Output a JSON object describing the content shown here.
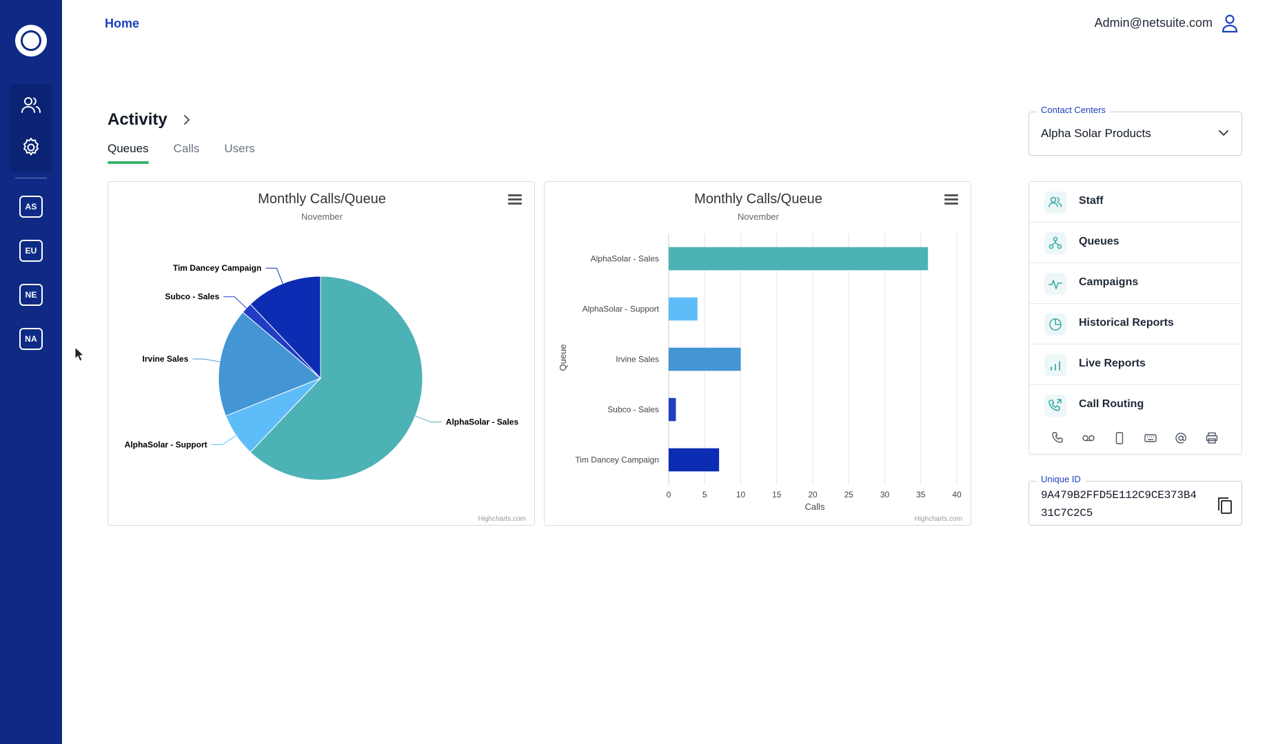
{
  "header": {
    "home_label": "Home",
    "user_email": "Admin@netsuite.com"
  },
  "sidebar": {
    "nav": [
      {
        "name": "users",
        "icon": "users-icon"
      },
      {
        "name": "settings",
        "icon": "gear-icon"
      }
    ],
    "regions": [
      "AS",
      "EU",
      "NE",
      "NA"
    ]
  },
  "activity": {
    "title": "Activity",
    "tabs": [
      {
        "label": "Queues",
        "active": true
      },
      {
        "label": "Calls",
        "active": false
      },
      {
        "label": "Users",
        "active": false
      }
    ]
  },
  "charts": {
    "credit": "Highcharts.com"
  },
  "chart_data": [
    {
      "type": "pie",
      "title": "Monthly Calls/Queue",
      "subtitle": "November",
      "slices": [
        {
          "label": "AlphaSolar - Sales",
          "value": 36,
          "color": "#4db2b5"
        },
        {
          "label": "AlphaSolar - Support",
          "value": 4,
          "color": "#5ebdf8"
        },
        {
          "label": "Irvine Sales",
          "value": 10,
          "color": "#4495d4"
        },
        {
          "label": "Subco - Sales",
          "value": 1,
          "color": "#1f3ec4"
        },
        {
          "label": "Tim Dancey Campaign",
          "value": 7,
          "color": "#0c2cb3"
        }
      ]
    },
    {
      "type": "bar",
      "title": "Monthly Calls/Queue",
      "subtitle": "November",
      "categories": [
        "AlphaSolar - Sales",
        "AlphaSolar - Support",
        "Irvine Sales",
        "Subco - Sales",
        "Tim Dancey Campaign"
      ],
      "values": [
        36,
        4,
        10,
        1,
        7
      ],
      "colors": [
        "#4db2b5",
        "#5ebdf8",
        "#4495d4",
        "#1f3ec4",
        "#0c2cb3"
      ],
      "xlabel": "Calls",
      "ylabel": "Queue",
      "xlim": [
        0,
        40
      ],
      "ticks": [
        0,
        5,
        10,
        15,
        20,
        25,
        30,
        35,
        40
      ],
      "grid": true
    }
  ],
  "contact_centers": {
    "label": "Contact Centers",
    "selected": "Alpha Solar Products"
  },
  "menu": {
    "items": [
      {
        "label": "Staff",
        "icon": "staff-icon"
      },
      {
        "label": "Queues",
        "icon": "queues-icon"
      },
      {
        "label": "Campaigns",
        "icon": "campaigns-icon"
      },
      {
        "label": "Historical Reports",
        "icon": "historical-reports-icon"
      },
      {
        "label": "Live Reports",
        "icon": "live-reports-icon"
      },
      {
        "label": "Call Routing",
        "icon": "call-routing-icon"
      }
    ],
    "channel_icons": [
      "phone-icon",
      "voicemail-icon",
      "mobile-icon",
      "keyboard-icon",
      "at-icon",
      "printer-icon"
    ]
  },
  "unique_id": {
    "label": "Unique ID",
    "value": "9A479B2FFD5E112C9CE373B431C7C2C5"
  },
  "colors": {
    "sidebar": "#0e2a84",
    "accent": "#1d3fbf",
    "tab_underline": "#3cb46f",
    "icon_teal": "#3aa9a9"
  }
}
